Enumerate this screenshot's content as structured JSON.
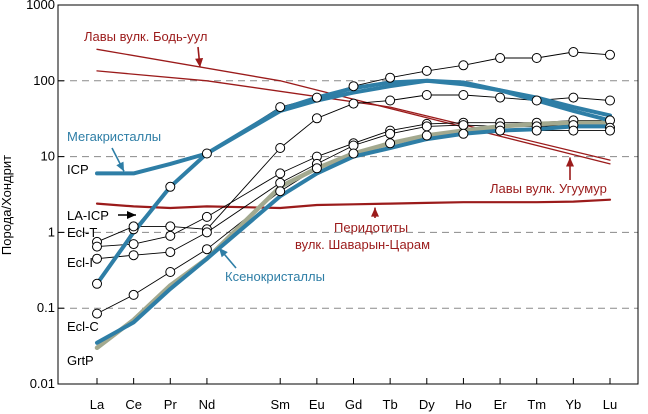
{
  "chart_data": {
    "type": "line",
    "ylabel": "Порода/Хондрит",
    "yscale": "log",
    "ylim": [
      0.01,
      1000
    ],
    "yticks": [
      "0.01",
      "0.1",
      "1",
      "10",
      "100",
      "1000"
    ],
    "categories": [
      "La",
      "Ce",
      "Pr",
      "Nd",
      "Sm",
      "Eu",
      "Gd",
      "Tb",
      "Dy",
      "Ho",
      "Er",
      "Tm",
      "Yb",
      "Lu"
    ],
    "x_positions": [
      57,
      58,
      59,
      60,
      62,
      63,
      64,
      65,
      66,
      67,
      68,
      69,
      70,
      71
    ],
    "colors": {
      "red": "#9b1b1b",
      "blue": "#2e7ea6",
      "olive": "#a3a98f",
      "black": "#000000",
      "grid": "#8a8a8a"
    },
    "series": [
      {
        "name": "",
        "style": "red-thin",
        "x": [
          57,
          62,
          71
        ],
        "values": [
          260,
          100,
          8
        ]
      },
      {
        "name": "",
        "style": "red-thin",
        "x": [
          57,
          60,
          65,
          71
        ],
        "values": [
          135,
          100,
          45,
          9
        ]
      },
      {
        "name": "",
        "style": "red-thick",
        "x": [
          57,
          58,
          59,
          60,
          62,
          63,
          64,
          65,
          66,
          67,
          68,
          69,
          70,
          71
        ],
        "values": [
          2.4,
          2.2,
          2.1,
          2.2,
          2.1,
          2.3,
          2.35,
          2.4,
          2.45,
          2.5,
          2.5,
          2.5,
          2.55,
          2.7
        ]
      },
      {
        "name": "",
        "style": "black-marker",
        "x": [
          57,
          58,
          59,
          60,
          62,
          63,
          64,
          65,
          66,
          67,
          68,
          69,
          70,
          71
        ],
        "values": [
          0.21,
          1.1,
          4,
          11,
          45,
          60,
          85,
          110,
          135,
          160,
          200,
          200,
          240,
          220
        ]
      },
      {
        "name": "",
        "style": "black-marker",
        "x": [
          57,
          58,
          59,
          60,
          62,
          63,
          64,
          65,
          66,
          67,
          68,
          69,
          70,
          71
        ],
        "values": [
          0.75,
          1.2,
          1.2,
          1.1,
          13,
          32,
          50,
          55,
          65,
          65,
          60,
          55,
          60,
          55
        ]
      },
      {
        "name": "",
        "style": "black-marker",
        "x": [
          57,
          58,
          59,
          60,
          62,
          63,
          64,
          65,
          66,
          67,
          68,
          69,
          70,
          71
        ],
        "values": [
          0.65,
          0.7,
          0.9,
          1.6,
          6,
          10,
          15,
          22,
          27,
          28,
          28,
          28,
          30,
          30
        ]
      },
      {
        "name": "",
        "style": "black-marker",
        "x": [
          57,
          58,
          59,
          60,
          62,
          63,
          64,
          65,
          66,
          67,
          68,
          69,
          70,
          71
        ],
        "values": [
          0.45,
          0.5,
          0.55,
          1.0,
          4.5,
          8,
          14,
          20,
          25,
          26,
          25,
          25,
          26,
          24
        ]
      },
      {
        "name": "",
        "style": "black-marker",
        "x": [
          57,
          58,
          59,
          60,
          62,
          63,
          64,
          65,
          66,
          67,
          68,
          69,
          70,
          71
        ],
        "values": [
          0.085,
          0.15,
          0.3,
          0.6,
          3.5,
          7,
          11,
          15,
          19,
          20,
          22,
          22,
          22,
          22
        ]
      },
      {
        "name": "",
        "style": "olive-thick",
        "x": [
          57,
          58,
          59,
          60,
          62,
          63,
          64,
          65,
          66,
          67,
          68,
          69,
          70,
          71
        ],
        "values": [
          0.03,
          0.07,
          0.2,
          0.45,
          4,
          7,
          11,
          15,
          19,
          22,
          25,
          27,
          28,
          28
        ]
      },
      {
        "name": "",
        "style": "blue-thick",
        "x": [
          57,
          58,
          59,
          60,
          62,
          63,
          64,
          65,
          66,
          67,
          68,
          69,
          70,
          71
        ],
        "values": [
          6,
          6,
          8,
          11,
          40,
          55,
          70,
          85,
          100,
          95,
          75,
          55,
          40,
          30
        ]
      },
      {
        "name": "",
        "style": "blue-thick",
        "x": [
          57,
          58,
          59,
          60,
          62,
          63,
          64,
          65,
          66,
          67,
          68,
          69,
          70,
          71
        ],
        "values": [
          0.21,
          1,
          4,
          11,
          42,
          60,
          80,
          95,
          100,
          90,
          75,
          60,
          45,
          35
        ]
      },
      {
        "name": "",
        "style": "blue-thick",
        "x": [
          57,
          58,
          59,
          60,
          62,
          63,
          64,
          65,
          66,
          67,
          68,
          69,
          70,
          71
        ],
        "values": [
          0.035,
          0.065,
          0.18,
          0.45,
          3,
          6,
          10,
          13,
          17,
          20,
          22,
          23,
          25,
          25
        ]
      }
    ],
    "annotations": [
      {
        "id": "bod-uul",
        "text": "Лавы вулк. Бодь-уул",
        "color": "red",
        "arrow_to": [
          62,
          100
        ]
      },
      {
        "id": "ugguumur",
        "text": "Лавы вулк. Угуумур",
        "color": "red",
        "arrow_to": [
          70,
          11
        ]
      },
      {
        "id": "peridotites-1",
        "text": "Перидотиты",
        "color": "red",
        "arrow_to": [
          65,
          2.4
        ]
      },
      {
        "id": "peridotites-2",
        "text": "вулк. Шаварын-Царам",
        "color": "red"
      },
      {
        "id": "megacrysts",
        "text": "Мегакристаллы",
        "color": "blue",
        "arrow_to": [
          57,
          6
        ]
      },
      {
        "id": "xenocrysts",
        "text": "Ксенокристаллы",
        "color": "blue",
        "arrow_to": [
          60,
          0.75
        ]
      }
    ],
    "left_labels": [
      {
        "id": "icp",
        "text": "ICP",
        "value": 6
      },
      {
        "id": "la-icp",
        "text": "LA-ICP",
        "value": 2.15,
        "arrow": true
      },
      {
        "id": "ecl-t",
        "text": "Ecl-T",
        "value": 1.05
      },
      {
        "id": "ecl-i",
        "text": "Ecl-I",
        "value": 0.4
      },
      {
        "id": "ecl-c",
        "text": "Ecl-C",
        "value": 0.045
      },
      {
        "id": "grtp",
        "text": "GrtP",
        "value": 0.018
      }
    ]
  }
}
